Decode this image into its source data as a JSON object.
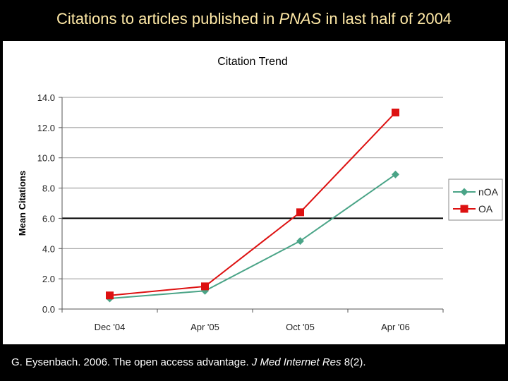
{
  "slide": {
    "title_pre": "Citations to articles published in ",
    "title_em": "PNAS",
    "title_post": " in last half of 2004",
    "caption_pre": "G. Eysenbach. 2006. The open access advantage. ",
    "caption_em": "J Med Internet Res",
    "caption_post": " 8(2)."
  },
  "colors": {
    "noa": "#4aa487",
    "oa": "#dd1111",
    "title": "#ffe9a6"
  },
  "chart_data": {
    "type": "line",
    "title": "Citation Trend",
    "xlabel": "",
    "ylabel": "Mean Citations",
    "categories": [
      "Dec '04",
      "Apr '05",
      "Oct '05",
      "Apr '06"
    ],
    "ylim": [
      0,
      14
    ],
    "yticks": [
      "0.0",
      "2.0",
      "4.0",
      "6.0",
      "8.0",
      "10.0",
      "12.0",
      "14.0"
    ],
    "grid": true,
    "legend_position": "right",
    "series": [
      {
        "name": "nOA",
        "marker": "diamond",
        "values": [
          0.7,
          1.2,
          4.5,
          8.9
        ]
      },
      {
        "name": "OA",
        "marker": "square",
        "values": [
          0.9,
          1.5,
          6.4,
          13.0
        ]
      }
    ]
  }
}
